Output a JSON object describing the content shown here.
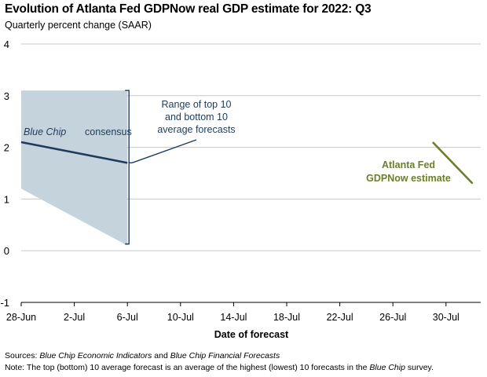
{
  "chart_data": {
    "type": "line",
    "title": "Evolution of Atlanta Fed GDPNow real GDP estimate for 2022: Q3",
    "subtitle": "Quarterly percent change (SAAR)",
    "xlabel": "Date of forecast",
    "ylabel": "",
    "ylim": [
      -1,
      4
    ],
    "yticks": [
      "-1",
      "0",
      "1",
      "2",
      "3",
      "4"
    ],
    "yticks_values": [
      -1,
      0,
      1,
      2,
      3,
      4
    ],
    "x_tick_labels": [
      "28-Jun",
      "2-Jul",
      "6-Jul",
      "10-Jul",
      "14-Jul",
      "18-Jul",
      "22-Jul",
      "26-Jul",
      "30-Jul"
    ],
    "x_tick_days": [
      0,
      4,
      8,
      12,
      16,
      20,
      24,
      28,
      32
    ],
    "xlim_days": [
      0,
      35
    ],
    "grid": "horizontal",
    "series": [
      {
        "name": "Blue Chip consensus",
        "color": "#1f3b5c",
        "x_days": [
          0,
          8
        ],
        "values": [
          2.1,
          1.7
        ]
      },
      {
        "name": "Atlanta Fed GDPNow estimate",
        "color": "#6b7f2a",
        "x_days": [
          31,
          34
        ],
        "values": [
          2.1,
          1.3
        ]
      }
    ],
    "range_band": {
      "name": "Range of top 10 and bottom 10 average forecasts",
      "color": "#c5d3dd",
      "x_days": [
        0,
        8
      ],
      "top": [
        3.1,
        3.1
      ],
      "bottom": [
        1.2,
        0.1
      ]
    },
    "annotations": {
      "consensus_label": "Blue Chip consensus",
      "range_line1": "Range of top 10",
      "range_line2": "and bottom 10",
      "range_line3": "average forecasts",
      "gdpnow_line1": "Atlanta Fed",
      "gdpnow_line2": "GDPNow estimate"
    }
  },
  "footer": {
    "sources_prefix": "Sources: ",
    "sources_title1": "Blue Chip Economic Indicators",
    "sources_and": " and ",
    "sources_title2": "Blue Chip Financial Forecasts",
    "note_prefix": "Note: The top (bottom) 10 average forecast is an average of the highest (lowest) 10 forecasts in the ",
    "note_italic": "Blue Chip",
    "note_suffix": " survey."
  }
}
